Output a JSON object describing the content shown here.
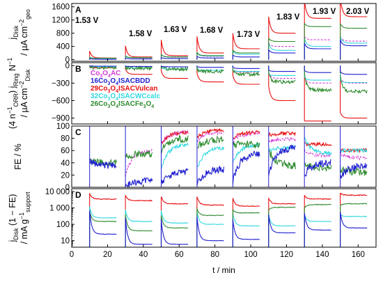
{
  "chart_data": {
    "type": "line",
    "x": {
      "label": "t / min",
      "range": [
        0,
        170
      ],
      "ticks": [
        0,
        20,
        40,
        60,
        80,
        100,
        120,
        140,
        160
      ]
    },
    "steps": {
      "labels": [
        "1.53 V",
        "1.58 V",
        "1.63 V",
        "1.68 V",
        "1.73 V",
        "1.83 V",
        "1.93 V",
        "2.03 V"
      ],
      "start": [
        10,
        30,
        50,
        70,
        90,
        110,
        130,
        150
      ],
      "end": [
        25,
        45,
        65,
        85,
        105,
        125,
        145,
        165
      ]
    },
    "legend": [
      {
        "label_parts": [
          {
            "t": "Co"
          },
          {
            "t": "3",
            "sub": true
          },
          {
            "t": "O"
          },
          {
            "t": "4",
            "sub": true
          },
          {
            "t": "AC"
          }
        ],
        "color": "#d53ad5",
        "dashed": true
      },
      {
        "label_parts": [
          {
            "t": "16Co"
          },
          {
            "t": "3",
            "sub": true
          },
          {
            "t": "O"
          },
          {
            "t": "4",
            "sub": true
          },
          {
            "t": "ISACBDD"
          }
        ],
        "color": "#1f1fd0",
        "dashed": false
      },
      {
        "label_parts": [
          {
            "t": "29Co"
          },
          {
            "t": "3",
            "sub": true
          },
          {
            "t": "O"
          },
          {
            "t": "4",
            "sub": true
          },
          {
            "t": "ISACVulcan"
          }
        ],
        "color": "#e81010",
        "dashed": false
      },
      {
        "label_parts": [
          {
            "t": "32Co"
          },
          {
            "t": "3",
            "sub": true
          },
          {
            "t": "O"
          },
          {
            "t": "4",
            "sub": true
          },
          {
            "t": "ISACWCcalc"
          }
        ],
        "color": "#30d8e0",
        "dashed": false
      },
      {
        "label_parts": [
          {
            "t": "26Co"
          },
          {
            "t": "3",
            "sub": true
          },
          {
            "t": "O"
          },
          {
            "t": "4",
            "sub": true
          },
          {
            "t": "ISACFe"
          },
          {
            "t": "3",
            "sub": true
          },
          {
            "t": "O"
          },
          {
            "t": "4",
            "sub": true
          }
        ],
        "color": "#2e8b2e",
        "dashed": false
      }
    ],
    "panels": [
      {
        "letter": "A",
        "scale": "linear",
        "ylim": [
          -50,
          1700
        ],
        "yticks": [
          0,
          400,
          800,
          1200,
          1600
        ],
        "ytick_labels": [
          "0",
          "400",
          "800",
          "1200",
          "1600"
        ],
        "ylabel_lines": [
          [
            {
              "t": "j"
            },
            {
              "t": "Disk",
              "sub": true
            }
          ],
          [
            {
              "t": "/ µA cm"
            },
            {
              "t": "−2",
              "sup": true
            },
            {
              "t": "geo",
              "sub": true
            }
          ]
        ],
        "series": [
          {
            "name": "29Co3O4ISACVulcan",
            "color": "#e81010",
            "spike": [
              260,
              420,
              600,
              700,
              800,
              1300,
              1800,
              1900
            ],
            "plateau": [
              50,
              80,
              120,
              200,
              330,
              800,
              1250,
              1300
            ]
          },
          {
            "name": "Co3O4AC",
            "color": "#d53ad5",
            "spike": [
              60,
              120,
              160,
              220,
              260,
              500,
              700,
              700
            ],
            "plateau": [
              40,
              50,
              70,
              100,
              160,
              400,
              600,
              560
            ]
          },
          {
            "name": "32Co3O4ISACWCcalc",
            "color": "#30d8e0",
            "spike": [
              70,
              120,
              160,
              200,
              260,
              500,
              650,
              700
            ],
            "plateau": [
              40,
              60,
              80,
              110,
              160,
              280,
              400,
              500
            ]
          },
          {
            "name": "26Co3O4ISACFe3O4",
            "color": "#2e8b2e",
            "spike": [
              60,
              100,
              160,
              220,
              300,
              650,
              1100,
              1100
            ],
            "plateau": [
              40,
              60,
              80,
              120,
              200,
              550,
              1000,
              950
            ]
          },
          {
            "name": "16Co3O4ISACBDD",
            "color": "#1f1fd0",
            "spike": [
              30,
              50,
              70,
              100,
              140,
              300,
              500,
              600
            ],
            "plateau": [
              10,
              20,
              30,
              50,
              80,
              200,
              330,
              420
            ]
          }
        ]
      },
      {
        "letter": "B",
        "scale": "linear",
        "ylim": [
          -1000,
          50
        ],
        "yticks": [
          0,
          -300,
          -600,
          -900
        ],
        "ytick_labels": [
          "0",
          "−300",
          "−600",
          "−900"
        ],
        "ylabel_lines": [
          [
            {
              "t": "(4 n"
            },
            {
              "t": "−1",
              "sup": true
            },
            {
              "t": "ORR",
              "sub": true
            },
            {
              "t": ") j"
            },
            {
              "t": "Ring",
              "sub": true
            },
            {
              "t": " N"
            },
            {
              "t": "−1",
              "sup": true
            }
          ],
          [
            {
              "t": "/ µA cm"
            },
            {
              "t": "−2",
              "sup": true
            },
            {
              "t": "Disk",
              "sub": true
            }
          ]
        ],
        "series": [
          {
            "name": "29Co3O4ISACVulcan",
            "color": "#e81010",
            "spike": [
              -20,
              -60,
              -90,
              -130,
              -170,
              -350,
              -950,
              -800
            ],
            "plateau": [
              -40,
              -150,
              -220,
              -280,
              -320,
              -600,
              -950,
              -900
            ]
          },
          {
            "name": "Co3O4AC",
            "color": "#d53ad5",
            "spike": [
              -5,
              -20,
              -40,
              -60,
              -80,
              -120,
              -200,
              -200
            ],
            "plateau": [
              -20,
              -40,
              -60,
              -80,
              -110,
              -220,
              -300,
              -300
            ]
          },
          {
            "name": "32Co3O4ISACWCcalc",
            "color": "#30d8e0",
            "spike": [
              -5,
              -20,
              -40,
              -60,
              -80,
              -150,
              -200,
              -250
            ],
            "plateau": [
              -20,
              -40,
              -60,
              -80,
              -100,
              -170,
              -250,
              -290
            ]
          },
          {
            "name": "26Co3O4ISACFe3O4",
            "color": "#2e8b2e",
            "spike": [
              -5,
              -20,
              -40,
              -60,
              -80,
              -130,
              -120,
              -140
            ],
            "plateau": [
              -40,
              -50,
              -60,
              -100,
              -150,
              -280,
              -420,
              -440
            ]
          },
          {
            "name": "16Co3O4ISACBDD",
            "color": "#1f1fd0",
            "spike": [
              -5,
              -10,
              -15,
              -20,
              -30,
              -80,
              -80,
              -100
            ],
            "plateau": [
              -10,
              -15,
              -20,
              -30,
              -50,
              -100,
              -120,
              -150
            ]
          }
        ]
      },
      {
        "letter": "C",
        "scale": "linear",
        "ylim": [
          0,
          100
        ],
        "yticks": [
          0,
          20,
          40,
          60,
          80,
          100
        ],
        "ytick_labels": [
          "0",
          "20",
          "40",
          "60",
          "80",
          "100"
        ],
        "ylabel_lines": [
          [
            {
              "t": "FE / %"
            }
          ]
        ],
        "series": [
          {
            "name": "29Co3O4ISACVulcan",
            "color": "#e81010",
            "spike": [
              null,
              null,
              70,
              80,
              80,
              85,
              70,
              60
            ],
            "plateau": [
              null,
              null,
              90,
              93,
              90,
              88,
              70,
              60
            ]
          },
          {
            "name": "Co3O4AC",
            "color": "#d53ad5",
            "spike": [
              null,
              20,
              70,
              75,
              75,
              75,
              60,
              55
            ],
            "plateau": [
              null,
              60,
              90,
              90,
              88,
              78,
              52,
              48
            ]
          },
          {
            "name": "32Co3O4ISACWCcalc",
            "color": "#30d8e0",
            "spike": [
              null,
              null,
              30,
              30,
              40,
              60,
              80,
              60
            ],
            "plateau": [
              null,
              null,
              70,
              65,
              70,
              65,
              55,
              60
            ]
          },
          {
            "name": "26Co3O4ISACFe3O4",
            "color": "#2e8b2e",
            "spike": [
              45,
              50,
              60,
              65,
              70,
              60,
              40,
              30
            ],
            "plateau": [
              40,
              55,
              80,
              78,
              70,
              35,
              30,
              25
            ]
          },
          {
            "name": "16Co3O4ISACBDD",
            "color": "#1f1fd0",
            "spike": [
              45,
              0,
              5,
              5,
              10,
              20,
              20,
              15
            ],
            "plateau": [
              35,
              10,
              25,
              30,
              55,
              65,
              40,
              35
            ]
          }
        ]
      },
      {
        "letter": "D",
        "scale": "log",
        "ylim": [
          4,
          15000
        ],
        "yticks": [
          10,
          100,
          1000,
          10000
        ],
        "ytick_labels": [
          "10",
          "100",
          "1 000",
          "10 000"
        ],
        "ylabel_lines": [
          [
            {
              "t": "j"
            },
            {
              "t": "Disk",
              "sub": true
            },
            {
              "t": " (1 − FE)"
            }
          ],
          [
            {
              "t": "/ mA g"
            },
            {
              "t": "−1",
              "sup": true
            },
            {
              "t": "support",
              "sub": true
            }
          ]
        ],
        "series": [
          {
            "name": "29Co3O4ISACVulcan",
            "color": "#e81010",
            "spike": [
              8000,
              6000,
              5000,
              5000,
              4000,
              4000,
              6000,
              8000
            ],
            "plateau": [
              3500,
              2800,
              1800,
              1500,
              1300,
              1800,
              3500,
              6000
            ]
          },
          {
            "name": "32Co3O4ISACWCcalc",
            "color": "#30d8e0",
            "spike": [
              1200,
              800,
              700,
              600,
              500,
              400,
              400,
              400
            ],
            "plateau": [
              250,
              150,
              120,
              100,
              80,
              80,
              150,
              300
            ]
          },
          {
            "name": "26Co3O4ISACFe3O4",
            "color": "#2e8b2e",
            "spike": [
              600,
              400,
              350,
              900,
              800,
              700,
              1000,
              1400
            ],
            "plateau": [
              150,
              40,
              60,
              350,
              500,
              1100,
              1600,
              1800
            ]
          },
          {
            "name": "16Co3O4ISACBDD",
            "color": "#1f1fd0",
            "spike": [
              700,
              250,
              200,
              300,
              200,
              400,
              500,
              600
            ],
            "plateau": [
              25,
              6,
              6,
              10,
              12,
              30,
              45,
              60
            ]
          }
        ]
      }
    ]
  }
}
